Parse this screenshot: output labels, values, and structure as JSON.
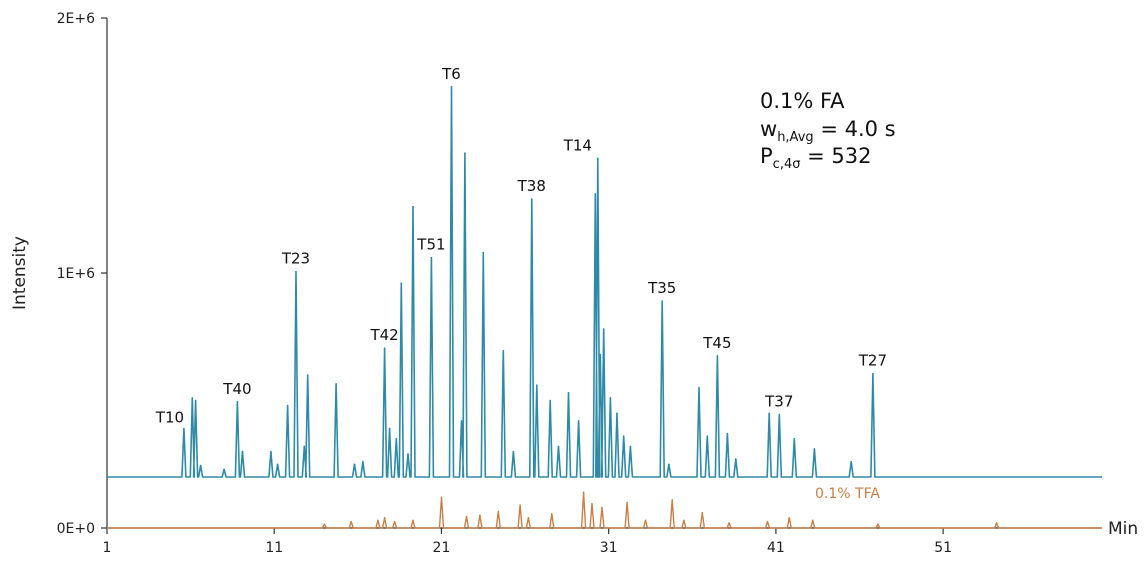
{
  "chart_data": {
    "type": "line",
    "xlabel": "Min",
    "ylabel": "Intensity",
    "xlim": [
      1,
      60.5
    ],
    "ylim": [
      0,
      2000000
    ],
    "x_ticks": [
      1,
      11,
      21,
      31,
      41,
      51
    ],
    "y_ticks": [
      0,
      1000000,
      2000000
    ],
    "y_tick_labels": [
      "0E+0",
      "1E+6",
      "2E+6"
    ],
    "grid": false,
    "annotation": {
      "line1": "0.1% FA",
      "line2_main": "w",
      "line2_sub": "h,Avg",
      "line2_rest": " = 4.0 s",
      "line3_main": "P",
      "line3_sub": "c,4σ",
      "line3_rest": " = 532"
    },
    "series": [
      {
        "name": "",
        "color": "#2e8aa5",
        "baseline": 200000,
        "peaks": [
          {
            "x": 5.6,
            "y": 390000,
            "label": "T10"
          },
          {
            "x": 6.1,
            "y": 510000,
            "label": ""
          },
          {
            "x": 6.3,
            "y": 500000,
            "label": ""
          },
          {
            "x": 6.6,
            "y": 245000,
            "label": ""
          },
          {
            "x": 8.0,
            "y": 230000,
            "label": ""
          },
          {
            "x": 8.8,
            "y": 495000,
            "label": "T40"
          },
          {
            "x": 9.1,
            "y": 300000,
            "label": ""
          },
          {
            "x": 10.8,
            "y": 300000,
            "label": ""
          },
          {
            "x": 11.2,
            "y": 250000,
            "label": ""
          },
          {
            "x": 11.8,
            "y": 480000,
            "label": ""
          },
          {
            "x": 12.3,
            "y": 1005000,
            "label": "T23"
          },
          {
            "x": 12.8,
            "y": 320000,
            "label": ""
          },
          {
            "x": 13.0,
            "y": 600000,
            "label": ""
          },
          {
            "x": 14.7,
            "y": 565000,
            "label": ""
          },
          {
            "x": 15.8,
            "y": 250000,
            "label": ""
          },
          {
            "x": 16.3,
            "y": 260000,
            "label": ""
          },
          {
            "x": 17.6,
            "y": 705000,
            "label": "T42"
          },
          {
            "x": 17.9,
            "y": 390000,
            "label": ""
          },
          {
            "x": 18.3,
            "y": 350000,
            "label": ""
          },
          {
            "x": 18.6,
            "y": 960000,
            "label": ""
          },
          {
            "x": 19.0,
            "y": 290000,
            "label": ""
          },
          {
            "x": 19.3,
            "y": 1260000,
            "label": ""
          },
          {
            "x": 20.4,
            "y": 1060000,
            "label": "T51"
          },
          {
            "x": 21.6,
            "y": 1730000,
            "label": "T6"
          },
          {
            "x": 22.2,
            "y": 420000,
            "label": ""
          },
          {
            "x": 22.4,
            "y": 1470000,
            "label": ""
          },
          {
            "x": 23.5,
            "y": 1080000,
            "label": ""
          },
          {
            "x": 24.7,
            "y": 695000,
            "label": ""
          },
          {
            "x": 25.3,
            "y": 300000,
            "label": ""
          },
          {
            "x": 26.4,
            "y": 1290000,
            "label": "T38"
          },
          {
            "x": 26.7,
            "y": 560000,
            "label": ""
          },
          {
            "x": 27.5,
            "y": 500000,
            "label": ""
          },
          {
            "x": 28.0,
            "y": 320000,
            "label": ""
          },
          {
            "x": 28.6,
            "y": 530000,
            "label": ""
          },
          {
            "x": 29.2,
            "y": 420000,
            "label": ""
          },
          {
            "x": 30.2,
            "y": 1310000,
            "label": ""
          },
          {
            "x": 30.35,
            "y": 1450000,
            "label": "T14"
          },
          {
            "x": 30.5,
            "y": 680000,
            "label": ""
          },
          {
            "x": 30.7,
            "y": 780000,
            "label": ""
          },
          {
            "x": 31.1,
            "y": 510000,
            "label": ""
          },
          {
            "x": 31.5,
            "y": 450000,
            "label": ""
          },
          {
            "x": 31.9,
            "y": 360000,
            "label": ""
          },
          {
            "x": 32.3,
            "y": 320000,
            "label": ""
          },
          {
            "x": 34.2,
            "y": 890000,
            "label": "T35"
          },
          {
            "x": 34.6,
            "y": 250000,
            "label": ""
          },
          {
            "x": 36.4,
            "y": 550000,
            "label": ""
          },
          {
            "x": 36.9,
            "y": 360000,
            "label": ""
          },
          {
            "x": 37.5,
            "y": 675000,
            "label": "T45"
          },
          {
            "x": 38.1,
            "y": 370000,
            "label": ""
          },
          {
            "x": 38.6,
            "y": 270000,
            "label": ""
          },
          {
            "x": 40.6,
            "y": 450000,
            "label": ""
          },
          {
            "x": 41.2,
            "y": 445000,
            "label": "T37"
          },
          {
            "x": 42.1,
            "y": 350000,
            "label": ""
          },
          {
            "x": 43.3,
            "y": 310000,
            "label": ""
          },
          {
            "x": 45.5,
            "y": 260000,
            "label": ""
          },
          {
            "x": 46.8,
            "y": 605000,
            "label": "T27"
          }
        ]
      },
      {
        "name": "0.1% TFA",
        "color": "#c87f45",
        "baseline": 0,
        "peaks": [
          {
            "x": 14.0,
            "y": 15000
          },
          {
            "x": 15.6,
            "y": 25000
          },
          {
            "x": 17.2,
            "y": 30000
          },
          {
            "x": 17.6,
            "y": 40000
          },
          {
            "x": 18.2,
            "y": 25000
          },
          {
            "x": 19.3,
            "y": 30000
          },
          {
            "x": 21.0,
            "y": 120000
          },
          {
            "x": 22.5,
            "y": 45000
          },
          {
            "x": 23.3,
            "y": 50000
          },
          {
            "x": 24.4,
            "y": 65000
          },
          {
            "x": 25.7,
            "y": 90000
          },
          {
            "x": 26.2,
            "y": 40000
          },
          {
            "x": 27.6,
            "y": 55000
          },
          {
            "x": 29.5,
            "y": 140000
          },
          {
            "x": 30.0,
            "y": 95000
          },
          {
            "x": 30.6,
            "y": 80000
          },
          {
            "x": 32.1,
            "y": 100000
          },
          {
            "x": 33.2,
            "y": 30000
          },
          {
            "x": 34.8,
            "y": 110000
          },
          {
            "x": 35.5,
            "y": 30000
          },
          {
            "x": 36.6,
            "y": 60000
          },
          {
            "x": 38.2,
            "y": 20000
          },
          {
            "x": 40.5,
            "y": 25000
          },
          {
            "x": 41.8,
            "y": 40000
          },
          {
            "x": 43.2,
            "y": 30000
          },
          {
            "x": 47.1,
            "y": 15000
          },
          {
            "x": 54.2,
            "y": 20000
          }
        ]
      }
    ]
  }
}
